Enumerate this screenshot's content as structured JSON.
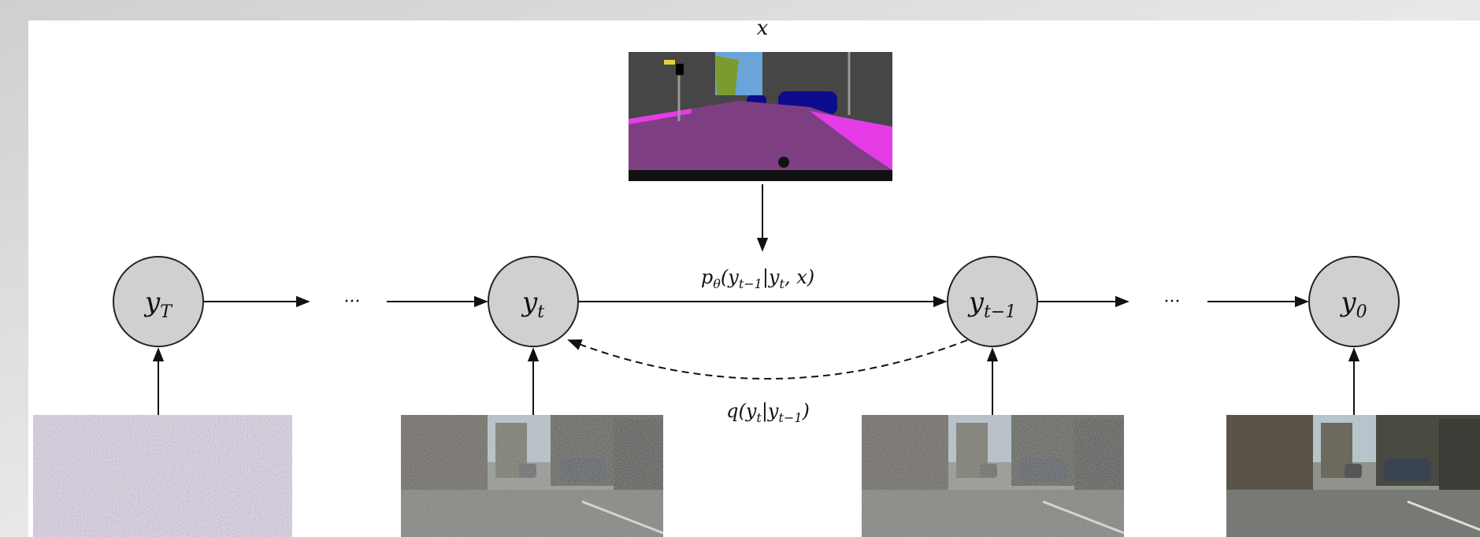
{
  "condition": {
    "label": "x"
  },
  "nodes": [
    {
      "base": "y",
      "sub": "T"
    },
    {
      "base": "y",
      "sub": "t"
    },
    {
      "base": "y",
      "sub": "t−1"
    },
    {
      "base": "y",
      "sub": "0"
    }
  ],
  "ellipsis": "···",
  "edges": [
    {
      "label": [
        {
          "text": "p"
        },
        {
          "text": "θ",
          "sub": true
        },
        {
          "text": "(y"
        },
        {
          "text": "t−1",
          "sub": true
        },
        {
          "text": "|y"
        },
        {
          "text": "t",
          "sub": true
        },
        {
          "text": ", x)"
        }
      ]
    },
    {
      "label": [
        {
          "text": "q(y"
        },
        {
          "text": "t",
          "sub": true
        },
        {
          "text": "|y"
        },
        {
          "text": "t−1",
          "sub": true
        },
        {
          "text": ")"
        }
      ]
    }
  ]
}
